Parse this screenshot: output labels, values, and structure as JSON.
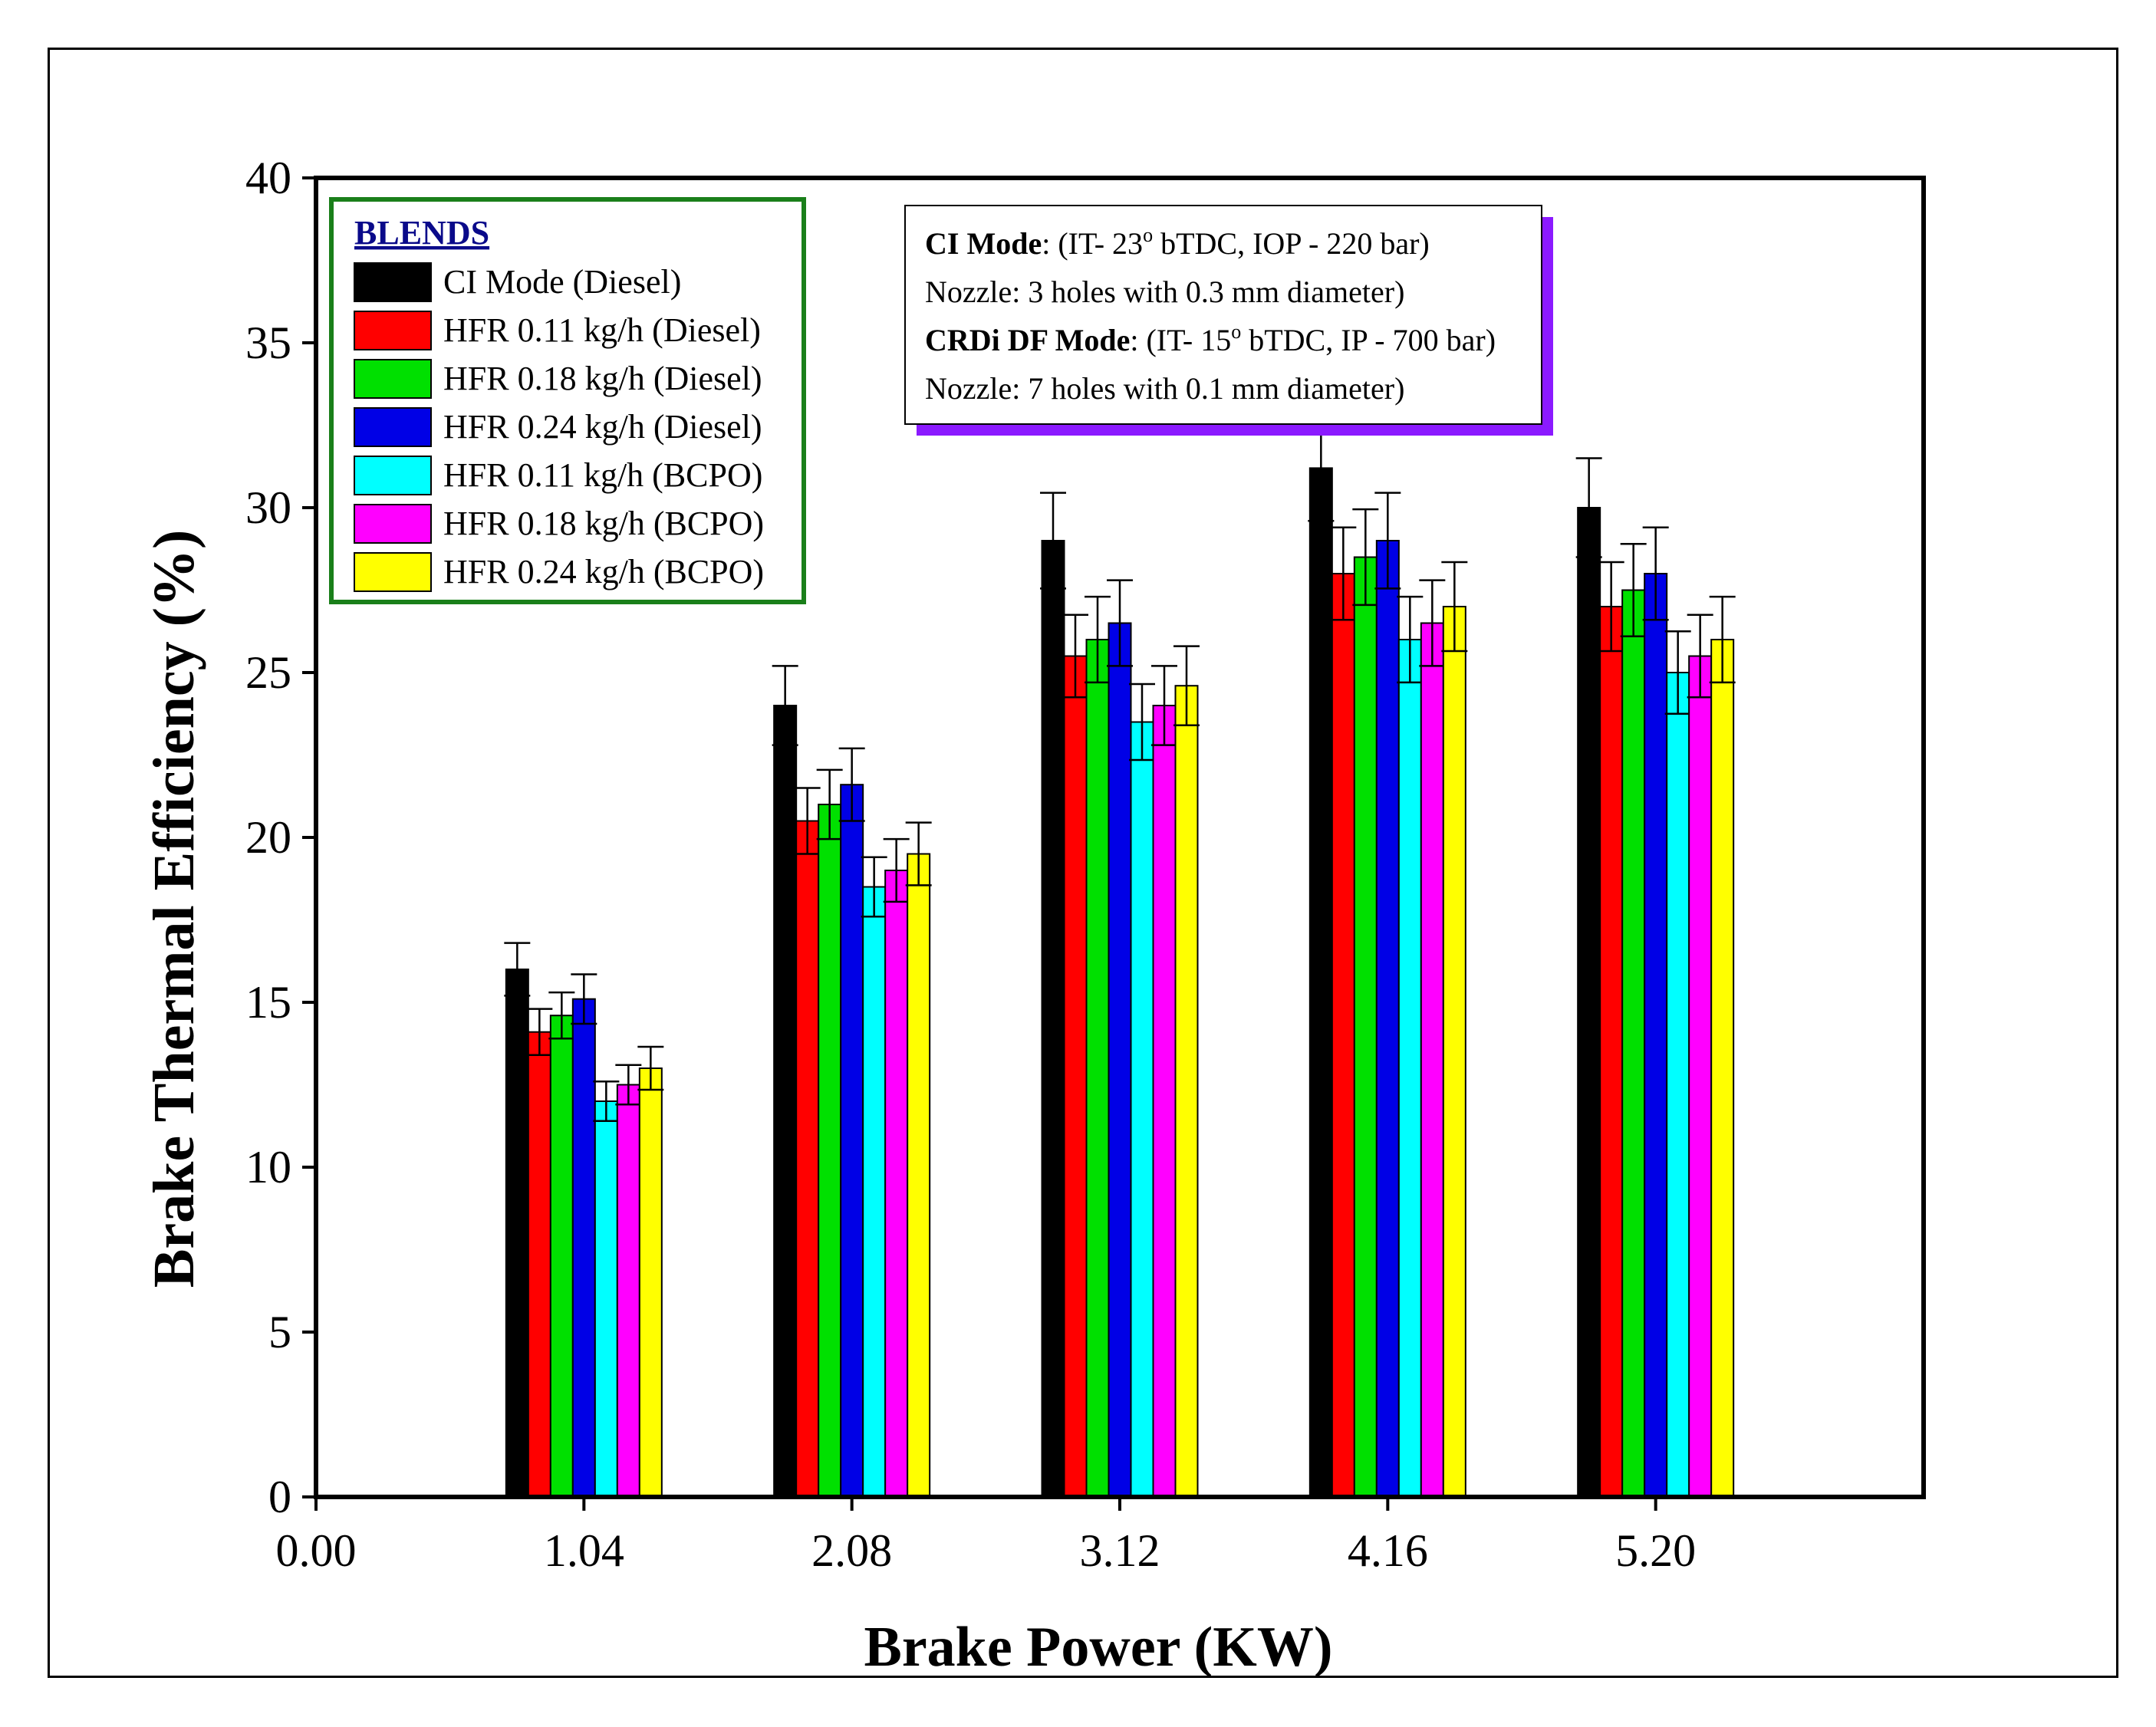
{
  "chart_data": {
    "type": "bar",
    "xlabel": "Brake Power (KW)",
    "ylabel": "Brake Thermal Efficiency (%)",
    "ylim": [
      0,
      40
    ],
    "yticks": [
      0,
      5,
      10,
      15,
      20,
      25,
      30,
      35,
      40
    ],
    "xlim": [
      0,
      6.24
    ],
    "xticks": [
      "0.00",
      "1.04",
      "2.08",
      "3.12",
      "4.16",
      "5.20"
    ],
    "x": [
      1.04,
      2.08,
      3.12,
      4.16,
      5.2
    ],
    "legend_title": "BLENDS",
    "legend_position": "top-left",
    "series": [
      {
        "name": "CI Mode (Diesel)",
        "color": "#000000",
        "values": [
          16.0,
          24.0,
          29.0,
          31.2,
          30.0
        ],
        "errors": [
          0.8,
          1.2,
          1.45,
          1.6,
          1.5
        ]
      },
      {
        "name": "HFR 0.11  kg/h (Diesel)",
        "color": "#ff0000",
        "values": [
          14.1,
          20.5,
          25.5,
          28.0,
          27.0
        ],
        "errors": [
          0.7,
          1.0,
          1.25,
          1.4,
          1.35
        ]
      },
      {
        "name": "HFR 0.18  kg/h (Diesel)",
        "color": "#00e000",
        "values": [
          14.6,
          21.0,
          26.0,
          28.5,
          27.5
        ],
        "errors": [
          0.7,
          1.05,
          1.3,
          1.45,
          1.4
        ]
      },
      {
        "name": "HFR 0.24  kg/h (Diesel)",
        "color": "#0000e6",
        "values": [
          15.1,
          21.6,
          26.5,
          29.0,
          28.0
        ],
        "errors": [
          0.75,
          1.1,
          1.3,
          1.45,
          1.4
        ]
      },
      {
        "name": "HFR 0.11  kg/h (BCPO)",
        "color": "#00ffff",
        "values": [
          12.0,
          18.5,
          23.5,
          26.0,
          25.0
        ],
        "errors": [
          0.6,
          0.9,
          1.15,
          1.3,
          1.25
        ]
      },
      {
        "name": "HFR 0.18  kg/h (BCPO)",
        "color": "#ff00ff",
        "values": [
          12.5,
          19.0,
          24.0,
          26.5,
          25.5
        ],
        "errors": [
          0.6,
          0.95,
          1.2,
          1.3,
          1.25
        ]
      },
      {
        "name": "HFR 0.24  kg/h (BCPO)",
        "color": "#ffff00",
        "values": [
          13.0,
          19.5,
          24.6,
          27.0,
          26.0
        ],
        "errors": [
          0.65,
          0.95,
          1.2,
          1.35,
          1.3
        ]
      }
    ]
  },
  "info_box": {
    "line1_bold": "CI Mode",
    "line1_text": ": (IT- 23",
    "line1_sup": "o",
    "line1_rest": " bTDC, IOP - 220 bar)",
    "line2": "Nozzle: 3 holes with 0.3 mm diameter)",
    "line3_bold": "CRDi DF Mode",
    "line3_text": ": (IT- 15",
    "line3_sup": "o",
    "line3_rest": " bTDC, IP - 700 bar)",
    "line4": "Nozzle: 7 holes with 0.1 mm diameter)"
  },
  "colors": {
    "legend_border": "#1a7f1a",
    "legend_title": "#0a0a8a",
    "info_shadow": "#8b1aff"
  }
}
